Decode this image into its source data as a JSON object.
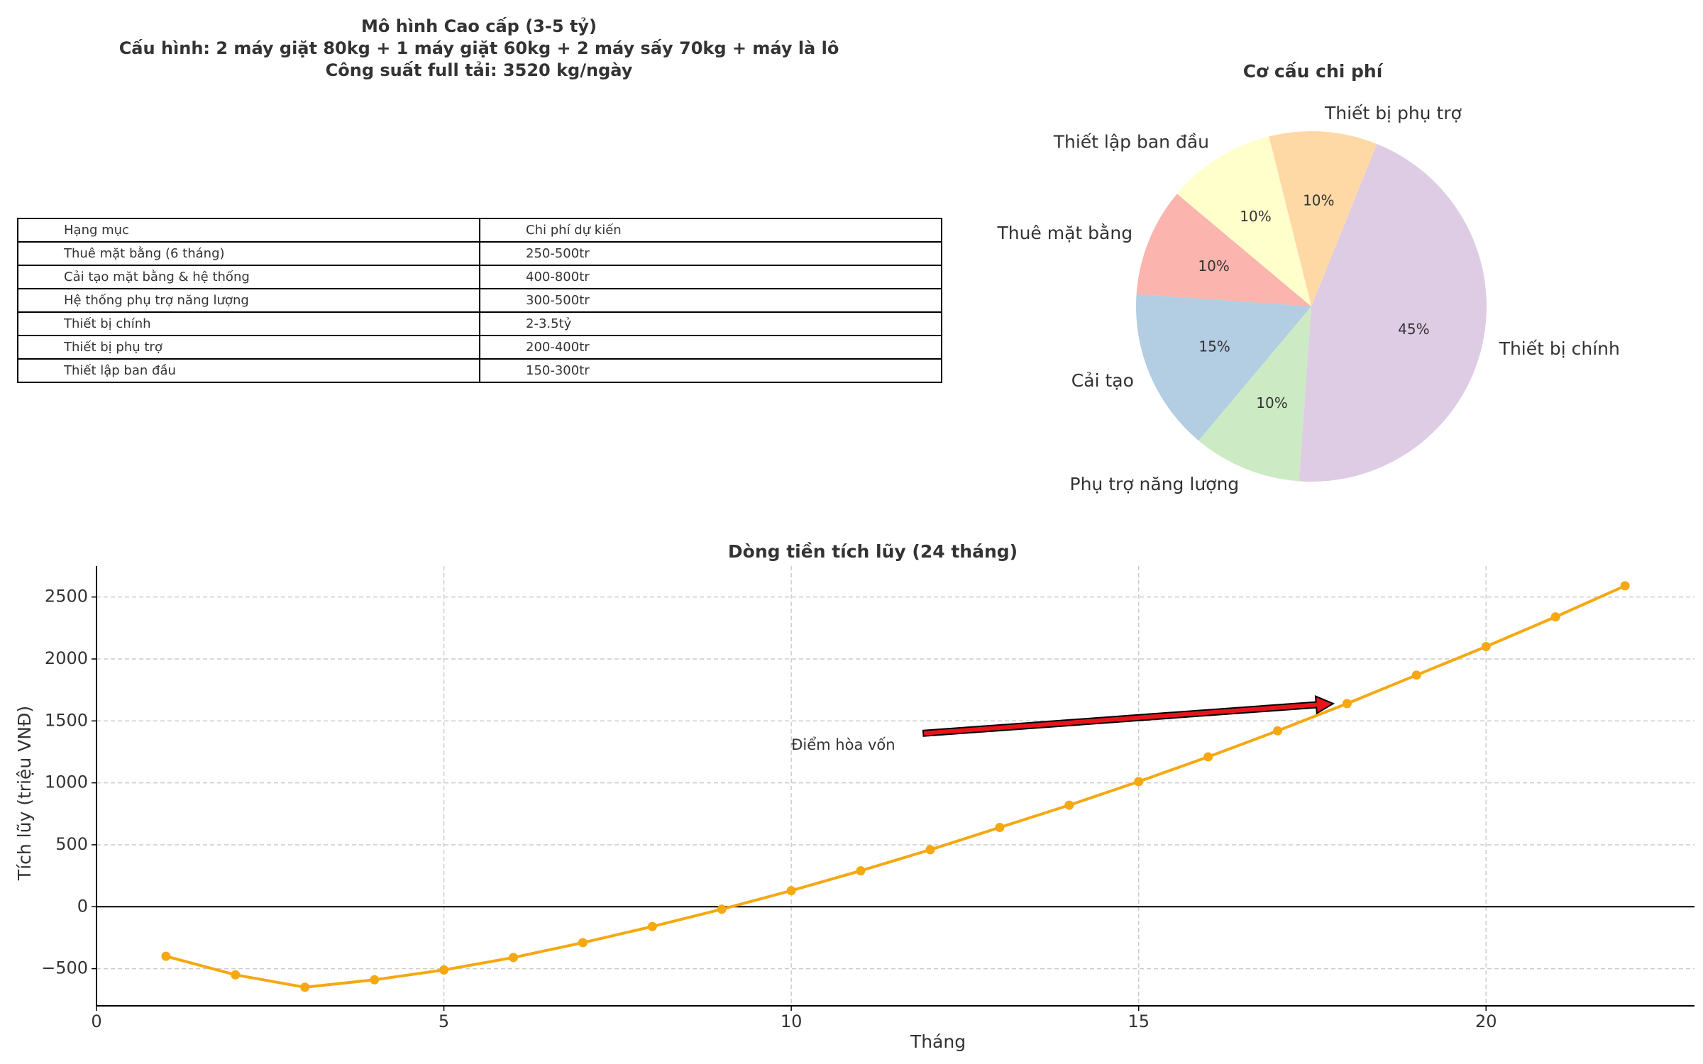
{
  "header": {
    "line1": "Mô hình Cao cấp (3-5 tỷ)",
    "line2": "Cấu hình: 2 máy giặt 80kg + 1 máy giặt 60kg + 2 máy sấy 70kg + máy là lô",
    "line3": "Công suất full tải: 3520 kg/ngày"
  },
  "table": {
    "headers": [
      "Hạng mục",
      "Chi phí dự kiến"
    ],
    "rows": [
      [
        "Thuê mặt bằng (6 tháng)",
        "250-500tr"
      ],
      [
        "Cải tạo mặt bằng & hệ thống",
        "400-800tr"
      ],
      [
        "Hệ thống phụ trợ năng lượng",
        "300-500tr"
      ],
      [
        "Thiết bị chính",
        "2-3.5tỷ"
      ],
      [
        "Thiết bị phụ trợ",
        "200-400tr"
      ],
      [
        "Thiết lập ban đầu",
        "150-300tr"
      ]
    ]
  },
  "chart_data": [
    {
      "type": "pie",
      "title": "Cơ cấu chi phí",
      "labels": [
        "Thuê mặt bằng",
        "Cải tạo",
        "Phụ trợ năng lượng",
        "Thiết bị chính",
        "Thiết bị phụ trợ",
        "Thiết lập ban đầu"
      ],
      "values": [
        10,
        15,
        10,
        45,
        10,
        10
      ],
      "pct_labels": [
        "10%",
        "15%",
        "10%",
        "45%",
        "10%",
        "10%"
      ],
      "colors": [
        "#fbb4ae",
        "#b3cde3",
        "#ccebc5",
        "#decbe4",
        "#fed9a6",
        "#ffffcc"
      ],
      "start_angle_deg": 140,
      "direction": "counterclockwise"
    },
    {
      "type": "line",
      "title": "Dòng tiền tích lũy (24 tháng)",
      "xlabel": "Tháng",
      "ylabel": "Tích lũy (triệu VNĐ)",
      "x": [
        1,
        2,
        3,
        4,
        5,
        6,
        7,
        8,
        9,
        10,
        11,
        12,
        13,
        14,
        15,
        16,
        17,
        18,
        19,
        20,
        21,
        22
      ],
      "y": [
        -400,
        -550,
        -650,
        -590,
        -510,
        -410,
        -290,
        -160,
        -20,
        130,
        290,
        460,
        640,
        820,
        1010,
        1210,
        1420,
        1640,
        1870,
        2100,
        2340,
        2590
      ],
      "xlim": [
        0,
        23
      ],
      "ylim": [
        -800,
        2750
      ],
      "xticks": [
        0,
        5,
        10,
        15,
        20
      ],
      "yticks": [
        -500,
        0,
        500,
        1000,
        1500,
        2000,
        2500
      ],
      "ytick_labels": [
        "−500",
        "0",
        "500",
        "1000",
        "1500",
        "2000",
        "2500"
      ],
      "grid": true,
      "line_color": "#f5a810",
      "annotation": {
        "text": "Điểm hòa vốn",
        "text_xy": [
          10,
          1300
        ],
        "arrow_from": [
          11.9,
          1400
        ],
        "arrow_to": [
          17.8,
          1640
        ],
        "arrow_color": "#e8141c"
      }
    }
  ]
}
